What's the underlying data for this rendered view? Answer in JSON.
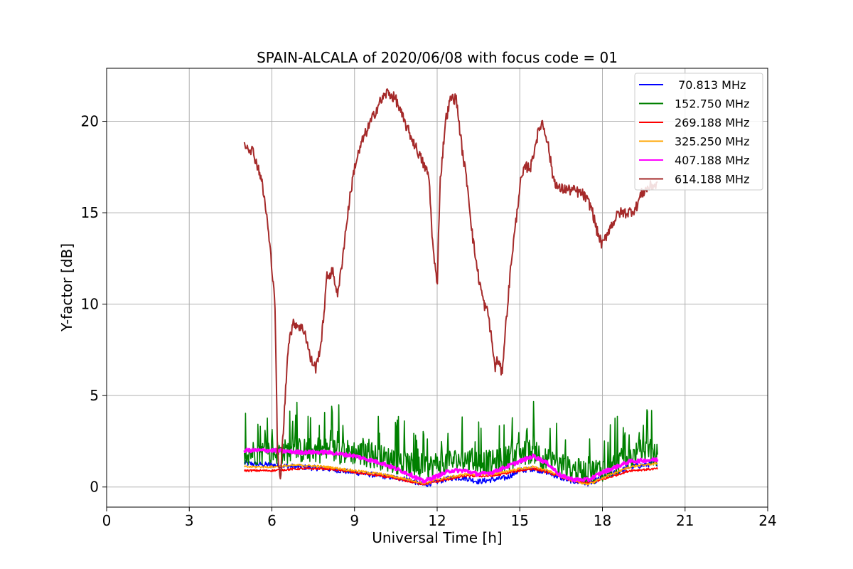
{
  "chart_data": {
    "type": "line",
    "title": "SPAIN-ALCALA of 2020/06/08 with focus code = 01",
    "xlabel": "Universal Time [h]",
    "ylabel": "Y-factor [dB]",
    "xlim": [
      0,
      24
    ],
    "ylim": [
      -1.1,
      22.9
    ],
    "xticks": [
      0,
      3,
      6,
      9,
      12,
      15,
      18,
      21,
      24
    ],
    "yticks": [
      0,
      5,
      10,
      15,
      20
    ],
    "grid": true,
    "legend_position": "top-right",
    "series": [
      {
        "name": " 70.813 MHz",
        "color": "#0000ff",
        "points": [
          [
            5,
            1.3
          ],
          [
            6,
            1.2
          ],
          [
            7,
            1.1
          ],
          [
            8,
            1.0
          ],
          [
            9,
            0.8
          ],
          [
            10,
            0.6
          ],
          [
            10.5,
            0.5
          ],
          [
            11,
            0.4
          ],
          [
            11.5,
            0.1
          ],
          [
            12,
            0.3
          ],
          [
            12.5,
            0.5
          ],
          [
            13,
            0.5
          ],
          [
            13.5,
            0.3
          ],
          [
            14,
            0.4
          ],
          [
            14.5,
            0.5
          ],
          [
            15,
            0.9
          ],
          [
            15.5,
            1.0
          ],
          [
            16,
            0.8
          ],
          [
            16.5,
            0.5
          ],
          [
            17,
            0.3
          ],
          [
            17.5,
            0.2
          ],
          [
            18,
            0.5
          ],
          [
            18.5,
            0.8
          ],
          [
            19,
            1.1
          ],
          [
            19.5,
            1.2
          ],
          [
            20,
            1.3
          ]
        ],
        "noise": 0.15
      },
      {
        "name": "152.750 MHz",
        "color": "#008000",
        "points": [
          [
            5,
            1.9
          ],
          [
            6,
            1.9
          ],
          [
            7,
            2.0
          ],
          [
            8,
            2.0
          ],
          [
            9,
            1.9
          ],
          [
            10,
            1.6
          ],
          [
            11,
            1.2
          ],
          [
            11.5,
            0.9
          ],
          [
            12,
            1.3
          ],
          [
            13,
            1.5
          ],
          [
            14,
            1.3
          ],
          [
            15,
            1.8
          ],
          [
            15.5,
            2.0
          ],
          [
            16,
            1.4
          ],
          [
            16.5,
            1.1
          ],
          [
            17,
            0.9
          ],
          [
            17.5,
            0.8
          ],
          [
            18,
            1.0
          ],
          [
            19,
            1.6
          ],
          [
            19.5,
            2.0
          ],
          [
            20,
            1.7
          ]
        ],
        "noise": 0.7
      },
      {
        "name": "269.188 MHz",
        "color": "#ff0000",
        "points": [
          [
            5,
            0.9
          ],
          [
            6,
            0.9
          ],
          [
            7,
            1.0
          ],
          [
            8,
            1.0
          ],
          [
            9,
            0.8
          ],
          [
            10,
            0.6
          ],
          [
            11,
            0.3
          ],
          [
            11.5,
            0.15
          ],
          [
            12,
            0.3
          ],
          [
            13,
            0.6
          ],
          [
            14,
            0.6
          ],
          [
            15,
            0.9
          ],
          [
            15.5,
            1.0
          ],
          [
            16,
            0.8
          ],
          [
            17,
            0.3
          ],
          [
            17.5,
            0.2
          ],
          [
            18,
            0.4
          ],
          [
            19,
            0.9
          ],
          [
            20,
            1.0
          ]
        ],
        "noise": 0.06
      },
      {
        "name": "325.250 MHz",
        "color": "#ffa500",
        "points": [
          [
            5,
            1.1
          ],
          [
            6,
            1.1
          ],
          [
            7,
            1.2
          ],
          [
            8,
            1.1
          ],
          [
            9,
            0.9
          ],
          [
            10,
            0.7
          ],
          [
            11,
            0.4
          ],
          [
            11.5,
            0.2
          ],
          [
            12,
            0.4
          ],
          [
            13,
            0.7
          ],
          [
            14,
            0.7
          ],
          [
            15,
            1.0
          ],
          [
            15.5,
            1.1
          ],
          [
            16,
            0.9
          ],
          [
            17,
            0.3
          ],
          [
            17.5,
            0.15
          ],
          [
            18,
            0.5
          ],
          [
            19,
            1.1
          ],
          [
            20,
            1.3
          ]
        ],
        "noise": 0.06
      },
      {
        "name": "407.188 MHz",
        "color": "#ff00ff",
        "points": [
          [
            5,
            2.0
          ],
          [
            6,
            2.0
          ],
          [
            7,
            1.9
          ],
          [
            8,
            1.9
          ],
          [
            9,
            1.7
          ],
          [
            10,
            1.3
          ],
          [
            11,
            0.7
          ],
          [
            11.5,
            0.3
          ],
          [
            12,
            0.6
          ],
          [
            12.5,
            0.9
          ],
          [
            13,
            0.9
          ],
          [
            13.5,
            0.7
          ],
          [
            14,
            0.8
          ],
          [
            14.5,
            1.1
          ],
          [
            15,
            1.4
          ],
          [
            15.5,
            1.7
          ],
          [
            16,
            1.3
          ],
          [
            16.5,
            0.6
          ],
          [
            17,
            0.4
          ],
          [
            17.5,
            0.4
          ],
          [
            18,
            0.8
          ],
          [
            18.5,
            1.1
          ],
          [
            19,
            1.4
          ],
          [
            20,
            1.5
          ]
        ],
        "noise": 0.1
      },
      {
        "name": "614.188 MHz",
        "color": "#a52a2a",
        "points": [
          [
            5,
            18.8
          ],
          [
            5.3,
            18.4
          ],
          [
            5.6,
            17.0
          ],
          [
            5.8,
            15.0
          ],
          [
            6.0,
            12.0
          ],
          [
            6.1,
            10.5
          ],
          [
            6.15,
            7.0
          ],
          [
            6.2,
            2.0
          ],
          [
            6.3,
            0.2
          ],
          [
            6.35,
            1.5
          ],
          [
            6.45,
            4.0
          ],
          [
            6.6,
            8.0
          ],
          [
            6.8,
            9.0
          ],
          [
            7.0,
            8.8
          ],
          [
            7.2,
            8.5
          ],
          [
            7.4,
            7.0
          ],
          [
            7.6,
            6.5
          ],
          [
            7.8,
            8.0
          ],
          [
            8.0,
            11.5
          ],
          [
            8.2,
            11.8
          ],
          [
            8.4,
            10.5
          ],
          [
            8.6,
            13.0
          ],
          [
            8.8,
            15.5
          ],
          [
            9.0,
            17.5
          ],
          [
            9.3,
            19.0
          ],
          [
            9.6,
            20.0
          ],
          [
            9.9,
            21.0
          ],
          [
            10.2,
            21.6
          ],
          [
            10.5,
            21.2
          ],
          [
            10.8,
            20.0
          ],
          [
            11.1,
            19.0
          ],
          [
            11.4,
            18.0
          ],
          [
            11.7,
            17.0
          ],
          [
            11.85,
            13.0
          ],
          [
            12.0,
            11.0
          ],
          [
            12.1,
            16.5
          ],
          [
            12.3,
            20.0
          ],
          [
            12.5,
            21.3
          ],
          [
            12.7,
            21.2
          ],
          [
            12.9,
            18.5
          ],
          [
            13.1,
            16.5
          ],
          [
            13.3,
            13.5
          ],
          [
            13.5,
            11.5
          ],
          [
            13.7,
            10.0
          ],
          [
            13.85,
            9.5
          ],
          [
            14.0,
            7.8
          ],
          [
            14.1,
            6.5
          ],
          [
            14.2,
            7.0
          ],
          [
            14.35,
            6.2
          ],
          [
            14.5,
            9.0
          ],
          [
            14.7,
            12.5
          ],
          [
            14.9,
            15.0
          ],
          [
            15.0,
            16.5
          ],
          [
            15.2,
            17.5
          ],
          [
            15.4,
            17.5
          ],
          [
            15.6,
            19.0
          ],
          [
            15.8,
            20.0
          ],
          [
            16.0,
            19.0
          ],
          [
            16.2,
            17.0
          ],
          [
            16.4,
            16.3
          ],
          [
            16.6,
            16.3
          ],
          [
            17.0,
            16.2
          ],
          [
            17.3,
            16.0
          ],
          [
            17.6,
            15.3
          ],
          [
            17.8,
            14.0
          ],
          [
            18.0,
            13.2
          ],
          [
            18.2,
            14.0
          ],
          [
            18.4,
            14.5
          ],
          [
            18.6,
            15.0
          ],
          [
            18.9,
            15.0
          ],
          [
            19.2,
            15.2
          ],
          [
            19.4,
            16.0
          ],
          [
            19.6,
            16.3
          ],
          [
            19.8,
            16.5
          ],
          [
            20.0,
            16.5
          ]
        ],
        "noise": 0.3
      }
    ]
  }
}
